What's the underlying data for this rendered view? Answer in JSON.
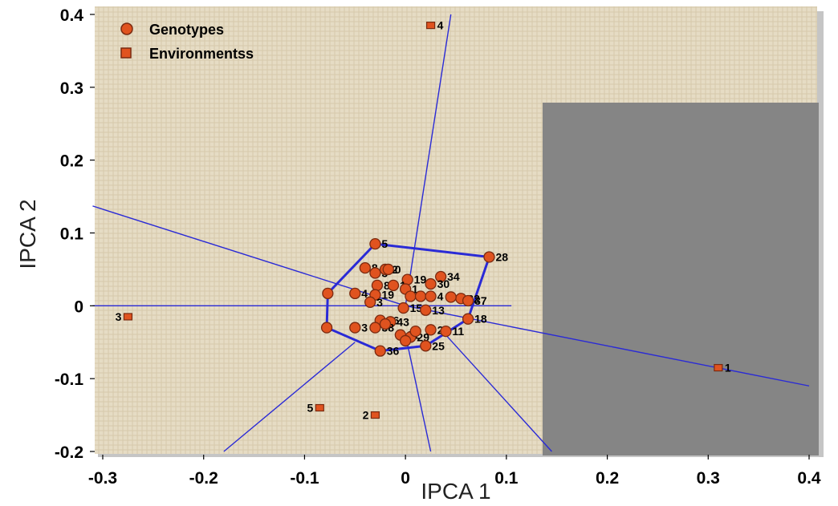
{
  "chart_data": {
    "type": "scatter",
    "xlabel": "IPCA 1",
    "ylabel": "IPCA 2",
    "xlim": [
      -0.3,
      0.4
    ],
    "ylim": [
      -0.2,
      0.4
    ],
    "xticks": [
      "-0.3",
      "-0.2",
      "-0.1",
      "0",
      "0.1",
      "0.2",
      "0.3",
      "0.4"
    ],
    "yticks": [
      "-0.2",
      "-0.1",
      "0",
      "0.1",
      "0.2",
      "0.3",
      "0.4"
    ],
    "legend": [
      "Genotypes",
      "Environmentss"
    ],
    "legend_position": "top-left",
    "colors": {
      "point": "#e0531f",
      "outline": "#7a2a10",
      "lines": "#2a2ad6",
      "background": "#e6dcc4",
      "overlay": "#858585"
    },
    "genotypes": [
      {
        "label": "5",
        "x": -0.03,
        "y": 0.085
      },
      {
        "label": "28",
        "x": 0.083,
        "y": 0.067
      },
      {
        "label": "8",
        "x": -0.04,
        "y": 0.052
      },
      {
        "label": "3",
        "x": -0.03,
        "y": 0.045
      },
      {
        "label": "2",
        "x": -0.02,
        "y": 0.05
      },
      {
        "label": "0",
        "x": -0.017,
        "y": 0.05
      },
      {
        "label": "19",
        "x": 0.002,
        "y": 0.036
      },
      {
        "label": "34",
        "x": 0.035,
        "y": 0.04
      },
      {
        "label": "30",
        "x": 0.025,
        "y": 0.03
      },
      {
        "label": "8",
        "x": -0.028,
        "y": 0.028
      },
      {
        "label": "1",
        "x": -0.012,
        "y": 0.028
      },
      {
        "label": "1",
        "x": 0.0,
        "y": 0.023
      },
      {
        "label": "4",
        "x": -0.05,
        "y": 0.017
      },
      {
        "label": "19",
        "x": -0.03,
        "y": 0.015
      },
      {
        "label": "8",
        "x": 0.005,
        "y": 0.013
      },
      {
        "label": "7",
        "x": 0.015,
        "y": 0.013
      },
      {
        "label": "4",
        "x": 0.025,
        "y": 0.013
      },
      {
        "label": "3",
        "x": -0.035,
        "y": 0.005
      },
      {
        "label": "22",
        "x": 0.055,
        "y": 0.01
      },
      {
        "label": "37",
        "x": 0.062,
        "y": 0.007
      },
      {
        "label": "15",
        "x": -0.002,
        "y": -0.003
      },
      {
        "label": "13",
        "x": 0.02,
        "y": -0.006
      },
      {
        "label": "18",
        "x": 0.062,
        "y": -0.018
      },
      {
        "label": "16",
        "x": -0.025,
        "y": -0.02
      },
      {
        "label": "43",
        "x": -0.015,
        "y": -0.022
      },
      {
        "label": "3",
        "x": -0.05,
        "y": -0.03
      },
      {
        "label": "38",
        "x": -0.03,
        "y": -0.03
      },
      {
        "label": "26",
        "x": 0.025,
        "y": -0.033
      },
      {
        "label": "11",
        "x": 0.04,
        "y": -0.035
      },
      {
        "label": "21",
        "x": -0.005,
        "y": -0.04
      },
      {
        "label": "29",
        "x": 0.005,
        "y": -0.043
      },
      {
        "label": "25",
        "x": 0.02,
        "y": -0.055
      },
      {
        "label": "36",
        "x": -0.025,
        "y": -0.062
      },
      {
        "label": "",
        "x": -0.077,
        "y": 0.017
      },
      {
        "label": "",
        "x": -0.078,
        "y": -0.03
      },
      {
        "label": "",
        "x": -0.02,
        "y": -0.025
      },
      {
        "label": "",
        "x": 0.0,
        "y": -0.048
      },
      {
        "label": "",
        "x": 0.01,
        "y": -0.035
      },
      {
        "label": "",
        "x": 0.045,
        "y": 0.012
      }
    ],
    "environments": [
      {
        "label": "4",
        "x": 0.025,
        "y": 0.385
      },
      {
        "label": "3",
        "x": -0.275,
        "y": -0.015
      },
      {
        "label": "1",
        "x": 0.31,
        "y": -0.085
      },
      {
        "label": "5",
        "x": -0.085,
        "y": -0.14
      },
      {
        "label": "2",
        "x": -0.03,
        "y": -0.15
      }
    ],
    "hull": [
      {
        "x": -0.03,
        "y": 0.085
      },
      {
        "x": 0.083,
        "y": 0.067
      },
      {
        "x": 0.062,
        "y": -0.018
      },
      {
        "x": 0.02,
        "y": -0.055
      },
      {
        "x": -0.025,
        "y": -0.062
      },
      {
        "x": -0.078,
        "y": -0.03
      },
      {
        "x": -0.077,
        "y": 0.017
      },
      {
        "x": -0.03,
        "y": 0.085
      }
    ],
    "rays": [
      {
        "x1": 0.0,
        "y1": 0.0,
        "x2": 0.045,
        "y2": 0.4
      },
      {
        "x1": 0.0,
        "y1": 0.0,
        "x2": -0.31,
        "y2": 0.137
      },
      {
        "x1": 0.0,
        "y1": 0.0,
        "x2": -0.31,
        "y2": 0.0
      },
      {
        "x1": 0.0,
        "y1": 0.0,
        "x2": 0.4,
        "y2": -0.11
      },
      {
        "x1": -0.05,
        "y1": -0.05,
        "x2": -0.18,
        "y2": -0.2
      },
      {
        "x1": 0.0,
        "y1": -0.04,
        "x2": 0.025,
        "y2": -0.2
      },
      {
        "x1": 0.04,
        "y1": -0.04,
        "x2": 0.145,
        "y2": -0.2
      },
      {
        "x1": -0.002,
        "y1": 0.0,
        "x2": 0.105,
        "y2": 0.0
      }
    ]
  }
}
